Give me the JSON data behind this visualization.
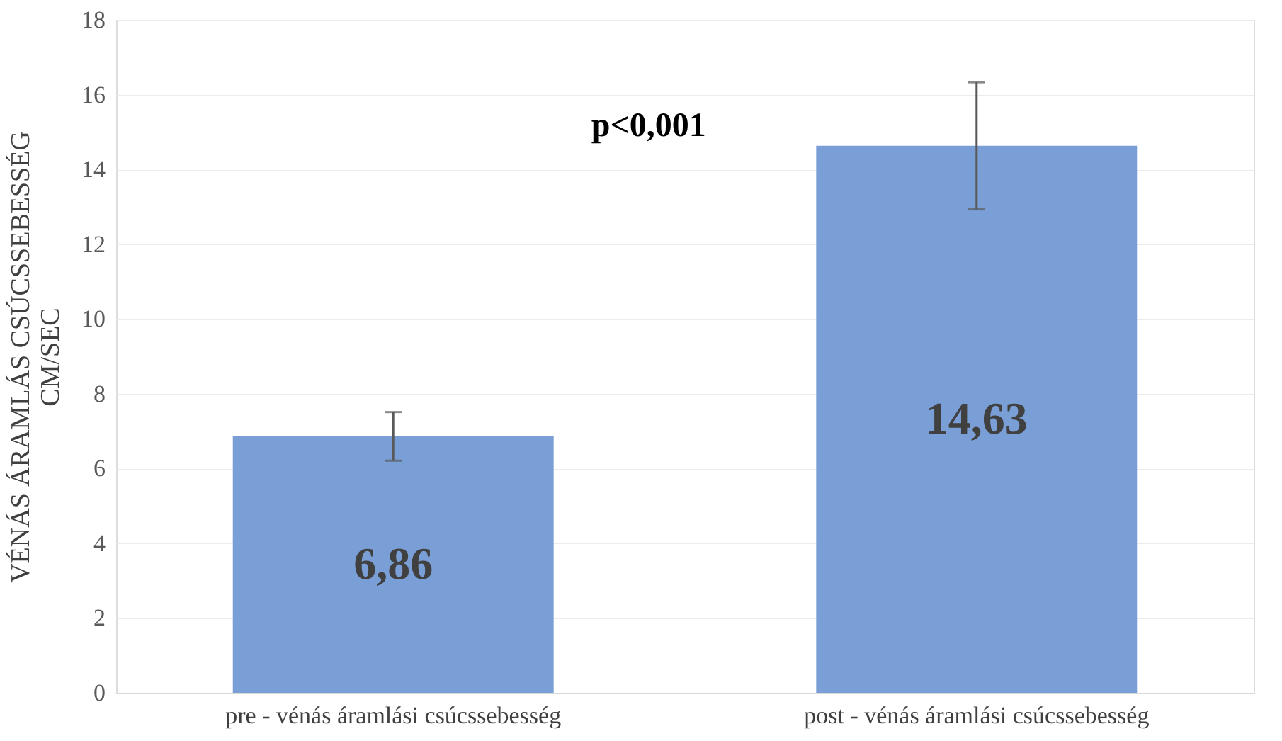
{
  "chart_data": {
    "type": "bar",
    "categories": [
      "pre - vénás áramlási csúcssebesség",
      "post - vénás áramlási csúcssebesség"
    ],
    "values": [
      6.86,
      14.63
    ],
    "errors": [
      0.65,
      1.7
    ],
    "value_labels": [
      "6,86",
      "14,63"
    ],
    "color": "#7a9fd6",
    "ylabel": "VÉNÁS ÁRAMLÁS CSÚCSSEBESSÉG\nCM/SEC",
    "annotations": [
      "p<0,001"
    ],
    "ylim": [
      0,
      18
    ],
    "yticks": [
      0,
      2,
      4,
      6,
      8,
      10,
      12,
      14,
      16,
      18
    ],
    "grid": "y"
  }
}
